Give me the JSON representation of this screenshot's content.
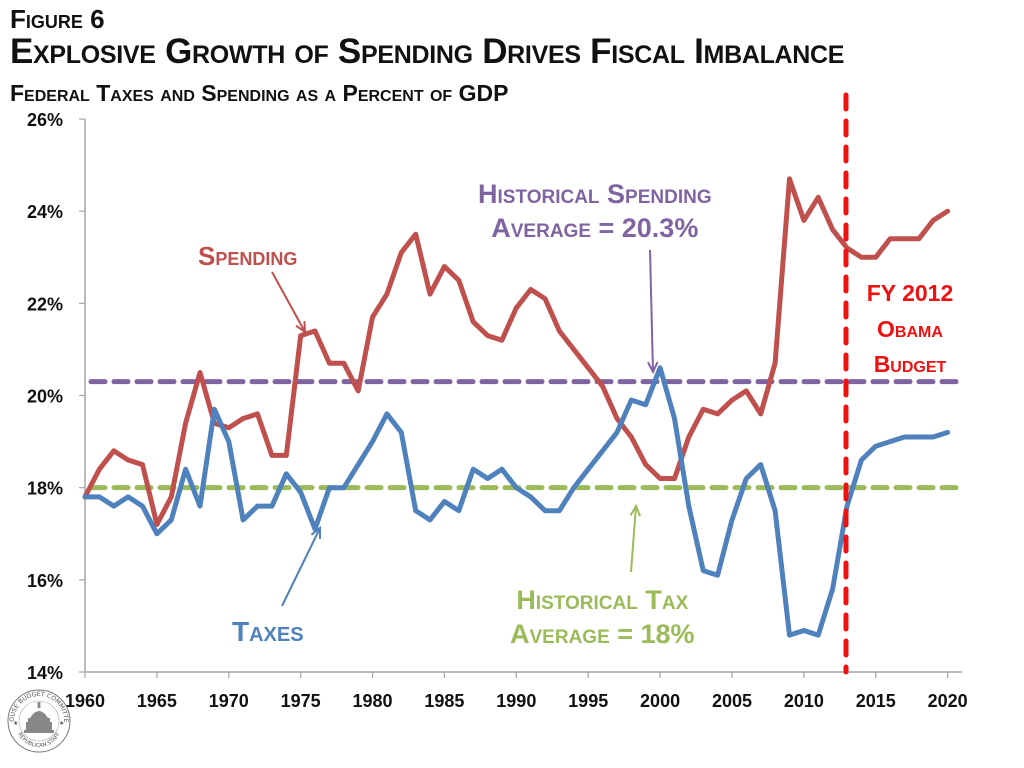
{
  "header": {
    "figure_label": "Figure 6",
    "title": "Explosive Growth of Spending Drives Fiscal Imbalance",
    "subtitle": "Federal Taxes and Spending as a Percent of GDP"
  },
  "annotations": {
    "spending": "Spending",
    "taxes": "Taxes",
    "spending_avg_line1": "Historical Spending",
    "spending_avg_line2": "Average = 20.3%",
    "tax_avg_line1": "Historical Tax",
    "tax_avg_line2": "Average = 18%",
    "fy_line1": "FY 2012",
    "fy_line2": "Obama",
    "fy_line3": "Budget"
  },
  "logo": {
    "text_top": "HOUSE BUDGET COMMITTEE",
    "text_bottom": "REPUBLICAN STAFF"
  },
  "colors": {
    "spending": "#c0504d",
    "taxes": "#4f81bd",
    "spending_avg": "#8064a2",
    "tax_avg": "#9bbb59",
    "fy_marker": "#ee1111",
    "axis": "#a6a6a6",
    "text": "#111111"
  },
  "chart_data": {
    "type": "line",
    "title": "Federal Taxes and Spending as a Percent of GDP",
    "xlabel": "",
    "ylabel": "",
    "xlim": [
      1960,
      2021
    ],
    "ylim": [
      14,
      26
    ],
    "xticks": [
      1960,
      1965,
      1970,
      1975,
      1980,
      1985,
      1990,
      1995,
      2000,
      2005,
      2010,
      2015,
      2020
    ],
    "xtick_labels": [
      "1960",
      "1965",
      "1970",
      "1975",
      "1980",
      "1985",
      "1990",
      "1995",
      "2000",
      "2005",
      "2010",
      "2015",
      "2020"
    ],
    "yticks": [
      14,
      16,
      18,
      20,
      22,
      24,
      26
    ],
    "ytick_labels": [
      "14%",
      "16%",
      "18%",
      "20%",
      "22%",
      "24%",
      "26%"
    ],
    "grid": false,
    "legend": "none (inline annotations)",
    "x": [
      1960,
      1961,
      1962,
      1963,
      1964,
      1965,
      1966,
      1967,
      1968,
      1969,
      1970,
      1971,
      1972,
      1973,
      1974,
      1975,
      1976,
      1977,
      1978,
      1979,
      1980,
      1981,
      1982,
      1983,
      1984,
      1985,
      1986,
      1987,
      1988,
      1989,
      1990,
      1991,
      1992,
      1993,
      1994,
      1995,
      1996,
      1997,
      1998,
      1999,
      2000,
      2001,
      2002,
      2003,
      2004,
      2005,
      2006,
      2007,
      2008,
      2009,
      2010,
      2011,
      2012,
      2013,
      2014,
      2015,
      2016,
      2017,
      2018,
      2019,
      2020
    ],
    "series": [
      {
        "name": "Spending",
        "values": [
          17.8,
          18.4,
          18.8,
          18.6,
          18.5,
          17.2,
          17.8,
          19.4,
          20.5,
          19.4,
          19.3,
          19.5,
          19.6,
          18.7,
          18.7,
          21.3,
          21.4,
          20.7,
          20.7,
          20.1,
          21.7,
          22.2,
          23.1,
          23.5,
          22.2,
          22.8,
          22.5,
          21.6,
          21.3,
          21.2,
          21.9,
          22.3,
          22.1,
          21.4,
          21.0,
          20.6,
          20.2,
          19.5,
          19.1,
          18.5,
          18.2,
          18.2,
          19.1,
          19.7,
          19.6,
          19.9,
          20.1,
          19.6,
          20.7,
          24.7,
          23.8,
          24.3,
          23.6,
          23.2,
          23.0,
          23.0,
          23.4,
          23.4,
          23.4,
          23.8,
          24.0
        ]
      },
      {
        "name": "Taxes",
        "values": [
          17.8,
          17.8,
          17.6,
          17.8,
          17.6,
          17.0,
          17.3,
          18.4,
          17.6,
          19.7,
          19.0,
          17.3,
          17.6,
          17.6,
          18.3,
          17.9,
          17.1,
          18.0,
          18.0,
          18.5,
          19.0,
          19.6,
          19.2,
          17.5,
          17.3,
          17.7,
          17.5,
          18.4,
          18.2,
          18.4,
          18.0,
          17.8,
          17.5,
          17.5,
          18.0,
          18.4,
          18.8,
          19.2,
          19.9,
          19.8,
          20.6,
          19.5,
          17.6,
          16.2,
          16.1,
          17.3,
          18.2,
          18.5,
          17.5,
          14.8,
          14.9,
          14.8,
          15.8,
          17.6,
          18.6,
          18.9,
          19.0,
          19.1,
          19.1,
          19.1,
          19.2
        ]
      }
    ],
    "reference_lines": [
      {
        "name": "Historical Spending Average",
        "orientation": "horizontal",
        "value": 20.3
      },
      {
        "name": "Historical Tax Average",
        "orientation": "horizontal",
        "value": 18.0
      },
      {
        "name": "FY 2012 Obama Budget",
        "orientation": "vertical",
        "value": 2013
      }
    ]
  }
}
